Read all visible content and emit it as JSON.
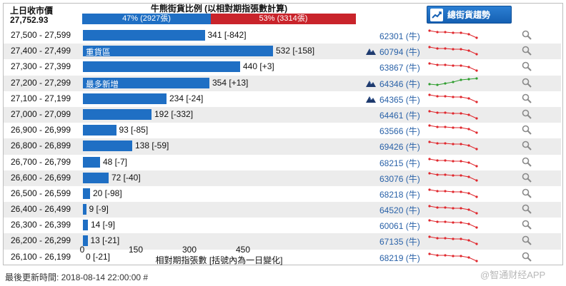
{
  "header": {
    "prev_close_label": "上日收市價",
    "prev_close_value": "27,752.93",
    "ratio_title": "牛熊街貨比例 (以相對期指張數計算)",
    "bull_ratio_text": "47% (2927張)",
    "bear_ratio_text": "53% (3314張)",
    "bull_ratio": 0.47,
    "bear_ratio": 0.53,
    "trend_button": "總街貨趨勢"
  },
  "colors": {
    "bull": "#1f6fc4",
    "bear": "#c9242b",
    "spark_red": "#e0272d",
    "spark_green": "#2f9e2f",
    "link": "#2a62a8"
  },
  "rows": [
    {
      "range": "27,500 - 27,599",
      "value": 341,
      "value_text": "341 [-842]",
      "bar_label": "",
      "code": "62301 (牛)",
      "flag": false,
      "trend": "down"
    },
    {
      "range": "27,400 - 27,499",
      "value": 532,
      "value_text": "532 [-158]",
      "bar_label": "重貨區",
      "code": "60794 (牛)",
      "flag": true,
      "trend": "down"
    },
    {
      "range": "27,300 - 27,399",
      "value": 440,
      "value_text": "440 [+3]",
      "bar_label": "",
      "code": "63867 (牛)",
      "flag": false,
      "trend": "down"
    },
    {
      "range": "27,200 - 27,299",
      "value": 354,
      "value_text": "354 [+13]",
      "bar_label": "最多新增",
      "code": "64346 (牛)",
      "flag": true,
      "trend": "up"
    },
    {
      "range": "27,100 - 27,199",
      "value": 234,
      "value_text": "234 [-24]",
      "bar_label": "",
      "code": "64365 (牛)",
      "flag": true,
      "trend": "down"
    },
    {
      "range": "27,000 - 27,099",
      "value": 192,
      "value_text": "192 [-332]",
      "bar_label": "",
      "code": "64461 (牛)",
      "flag": false,
      "trend": "down"
    },
    {
      "range": "26,900 - 26,999",
      "value": 93,
      "value_text": "93 [-85]",
      "bar_label": "",
      "code": "63566 (牛)",
      "flag": false,
      "trend": "down"
    },
    {
      "range": "26,800 - 26,899",
      "value": 138,
      "value_text": "138 [-59]",
      "bar_label": "",
      "code": "69426 (牛)",
      "flag": false,
      "trend": "down"
    },
    {
      "range": "26,700 - 26,799",
      "value": 48,
      "value_text": "48 [-7]",
      "bar_label": "",
      "code": "68215 (牛)",
      "flag": false,
      "trend": "down"
    },
    {
      "range": "26,600 - 26,699",
      "value": 72,
      "value_text": "72 [-40]",
      "bar_label": "",
      "code": "63076 (牛)",
      "flag": false,
      "trend": "down"
    },
    {
      "range": "26,500 - 26,599",
      "value": 20,
      "value_text": "20 [-98]",
      "bar_label": "",
      "code": "68218 (牛)",
      "flag": false,
      "trend": "down"
    },
    {
      "range": "26,400 - 26,499",
      "value": 9,
      "value_text": "9 [-9]",
      "bar_label": "",
      "code": "64520 (牛)",
      "flag": false,
      "trend": "down"
    },
    {
      "range": "26,300 - 26,399",
      "value": 14,
      "value_text": "14 [-9]",
      "bar_label": "",
      "code": "60061 (牛)",
      "flag": false,
      "trend": "down"
    },
    {
      "range": "26,200 - 26,299",
      "value": 13,
      "value_text": "13 [-21]",
      "bar_label": "",
      "code": "67135 (牛)",
      "flag": false,
      "trend": "down"
    },
    {
      "range": "26,100 - 26,199",
      "value": 0,
      "value_text": "0 [-21]",
      "bar_label": "",
      "code": "68219 (牛)",
      "flag": false,
      "trend": "down"
    }
  ],
  "axis": {
    "ticks": [
      0,
      150,
      300,
      450
    ],
    "max": 600,
    "title": "相對期指張數 [括號內為一日變化]"
  },
  "footer": {
    "updated": "最後更新時間: 2018-08-14 22:00:00 #",
    "watermark": "@智通财经APP"
  }
}
